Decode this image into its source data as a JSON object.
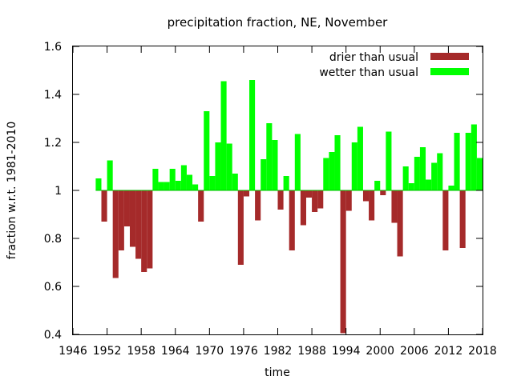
{
  "chart_data": {
    "type": "bar",
    "title": "precipitation fraction, NE, November",
    "xlabel": "time",
    "ylabel": "fraction w.r.t. 1981-2010",
    "xlim": [
      1946,
      2018
    ],
    "ylim": [
      0.4,
      1.6
    ],
    "baseline": 1,
    "x_ticks": [
      1946,
      1952,
      1958,
      1964,
      1970,
      1976,
      1982,
      1988,
      1994,
      2000,
      2006,
      2012,
      2018
    ],
    "x_tick_labels": [
      "1946",
      "1952",
      "1958",
      "1964",
      "1970",
      "1976",
      "1982",
      "1988",
      "1994",
      "2000",
      "2006",
      "2012",
      "2018"
    ],
    "y_ticks": [
      0.4,
      0.6,
      0.8,
      1.0,
      1.2,
      1.4,
      1.6
    ],
    "y_tick_labels": [
      "0.4",
      "0.6",
      "0.8",
      "1",
      "1.2",
      "1.4",
      "1.6"
    ],
    "legend": [
      {
        "name": "drier than usual",
        "color": "#a52a2a"
      },
      {
        "name": "wetter than usual",
        "color": "#00ff00"
      }
    ],
    "legend_position": "top-right",
    "grid": false,
    "colors": {
      "drier": "#a52a2a",
      "wetter": "#00ff00"
    },
    "x": [
      1950,
      1951,
      1952,
      1953,
      1954,
      1955,
      1956,
      1957,
      1958,
      1959,
      1960,
      1961,
      1962,
      1963,
      1964,
      1965,
      1966,
      1967,
      1968,
      1969,
      1970,
      1971,
      1972,
      1973,
      1974,
      1975,
      1976,
      1977,
      1978,
      1979,
      1980,
      1981,
      1982,
      1983,
      1984,
      1985,
      1986,
      1987,
      1988,
      1989,
      1990,
      1991,
      1992,
      1993,
      1994,
      1995,
      1996,
      1997,
      1998,
      1999,
      2000,
      2001,
      2002,
      2003,
      2004,
      2005,
      2006,
      2007,
      2008,
      2009,
      2010,
      2011,
      2012,
      2013,
      2014,
      2015,
      2016,
      2017
    ],
    "values": [
      1.05,
      0.87,
      1.125,
      0.635,
      0.75,
      0.85,
      0.765,
      0.715,
      0.66,
      0.675,
      1.09,
      1.035,
      1.035,
      1.09,
      1.04,
      1.105,
      1.065,
      1.025,
      0.87,
      1.33,
      1.06,
      1.2,
      1.455,
      1.195,
      1.07,
      0.69,
      0.975,
      1.46,
      0.875,
      1.13,
      1.28,
      1.21,
      0.92,
      1.06,
      0.75,
      1.235,
      0.855,
      0.97,
      0.91,
      0.925,
      1.135,
      1.16,
      1.23,
      0.405,
      0.915,
      1.2,
      1.265,
      0.955,
      0.875,
      1.04,
      0.98,
      1.245,
      0.865,
      0.725,
      1.1,
      1.03,
      1.14,
      1.18,
      1.045,
      1.115,
      1.155,
      0.75,
      1.02,
      1.24,
      0.76,
      1.24,
      1.275,
      1.135
    ]
  }
}
